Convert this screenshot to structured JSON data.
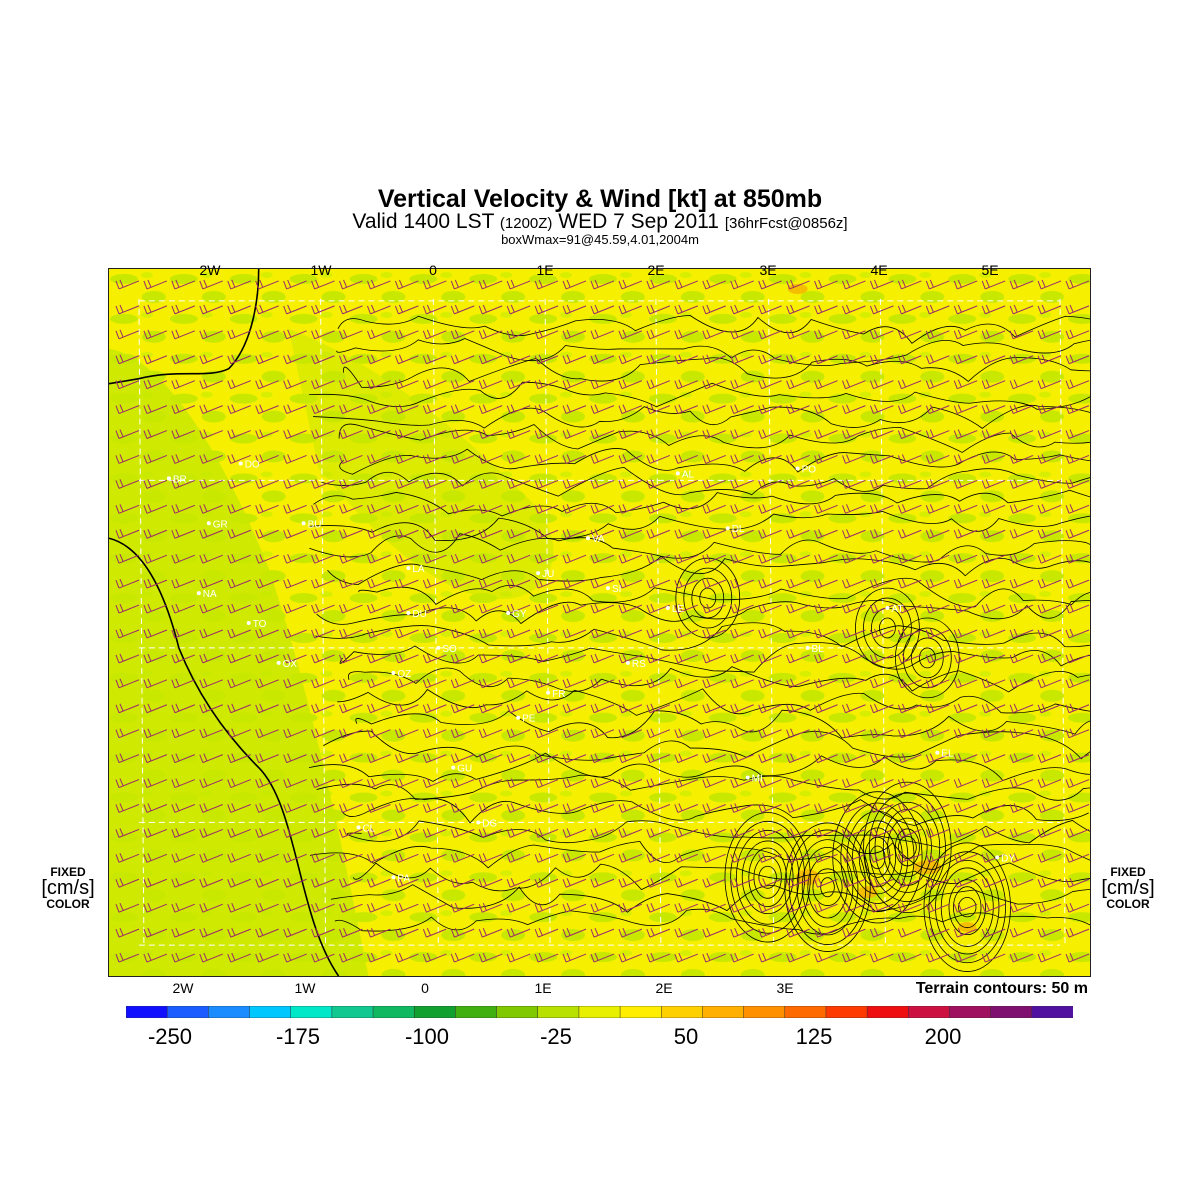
{
  "header": {
    "title": "Vertical Velocity & Wind [kt] at 850mb",
    "valid_prefix": "Valid 1400 LST",
    "valid_utc": "(1200Z)",
    "valid_date": "WED 7 Sep 2011",
    "forecast": "[36hrFcst@0856z]",
    "boxwmax": "boxWmax=91@45.59,4.01,2004m"
  },
  "map": {
    "top_lon_labels": [
      "2W",
      "1W",
      "0",
      "1E",
      "2E",
      "3E",
      "4E",
      "5E"
    ],
    "bottom_lon_labels": [
      "2W",
      "1W",
      "0",
      "1E",
      "2E",
      "3E"
    ],
    "terrain_note": "Terrain contours: 50 m",
    "colors": {
      "background": "#f6f000",
      "green": "#c8e800",
      "orange": "#f5b800",
      "wind_barb": "#9b2a6a",
      "contour": "#000000",
      "grid": "#ffffff"
    },
    "station_labels": [
      "BR",
      "DO",
      "GR",
      "BU",
      "NA",
      "TO",
      "OX",
      "OZ",
      "DU",
      "SO",
      "GY",
      "PE",
      "FR",
      "RS",
      "SI",
      "AL",
      "DL",
      "BL",
      "AT",
      "EL",
      "DY",
      "DG",
      "GU",
      "PA",
      "CL",
      "LA",
      "VA",
      "JU",
      "LE",
      "MI",
      "PO"
    ]
  },
  "legend": {
    "left_label": {
      "line1": "FIXED",
      "units": "[cm/s]",
      "line3": "COLOR"
    },
    "right_label": {
      "line1": "FIXED",
      "units": "[cm/s]",
      "line3": "COLOR"
    },
    "colorbar_labels": [
      "-250",
      "-175",
      "-100",
      "-25",
      "50",
      "125",
      "200"
    ],
    "colorbar_colors": [
      "#1010ff",
      "#1a5cff",
      "#1a8cff",
      "#00c8ff",
      "#00e8c8",
      "#10c890",
      "#10b860",
      "#10a030",
      "#40b010",
      "#80c800",
      "#b8e000",
      "#e8f000",
      "#ffee00",
      "#ffd000",
      "#ffb000",
      "#ff9000",
      "#ff6a00",
      "#ff3a00",
      "#ee1010",
      "#cc1040",
      "#a01060",
      "#801070",
      "#5010a0"
    ]
  }
}
